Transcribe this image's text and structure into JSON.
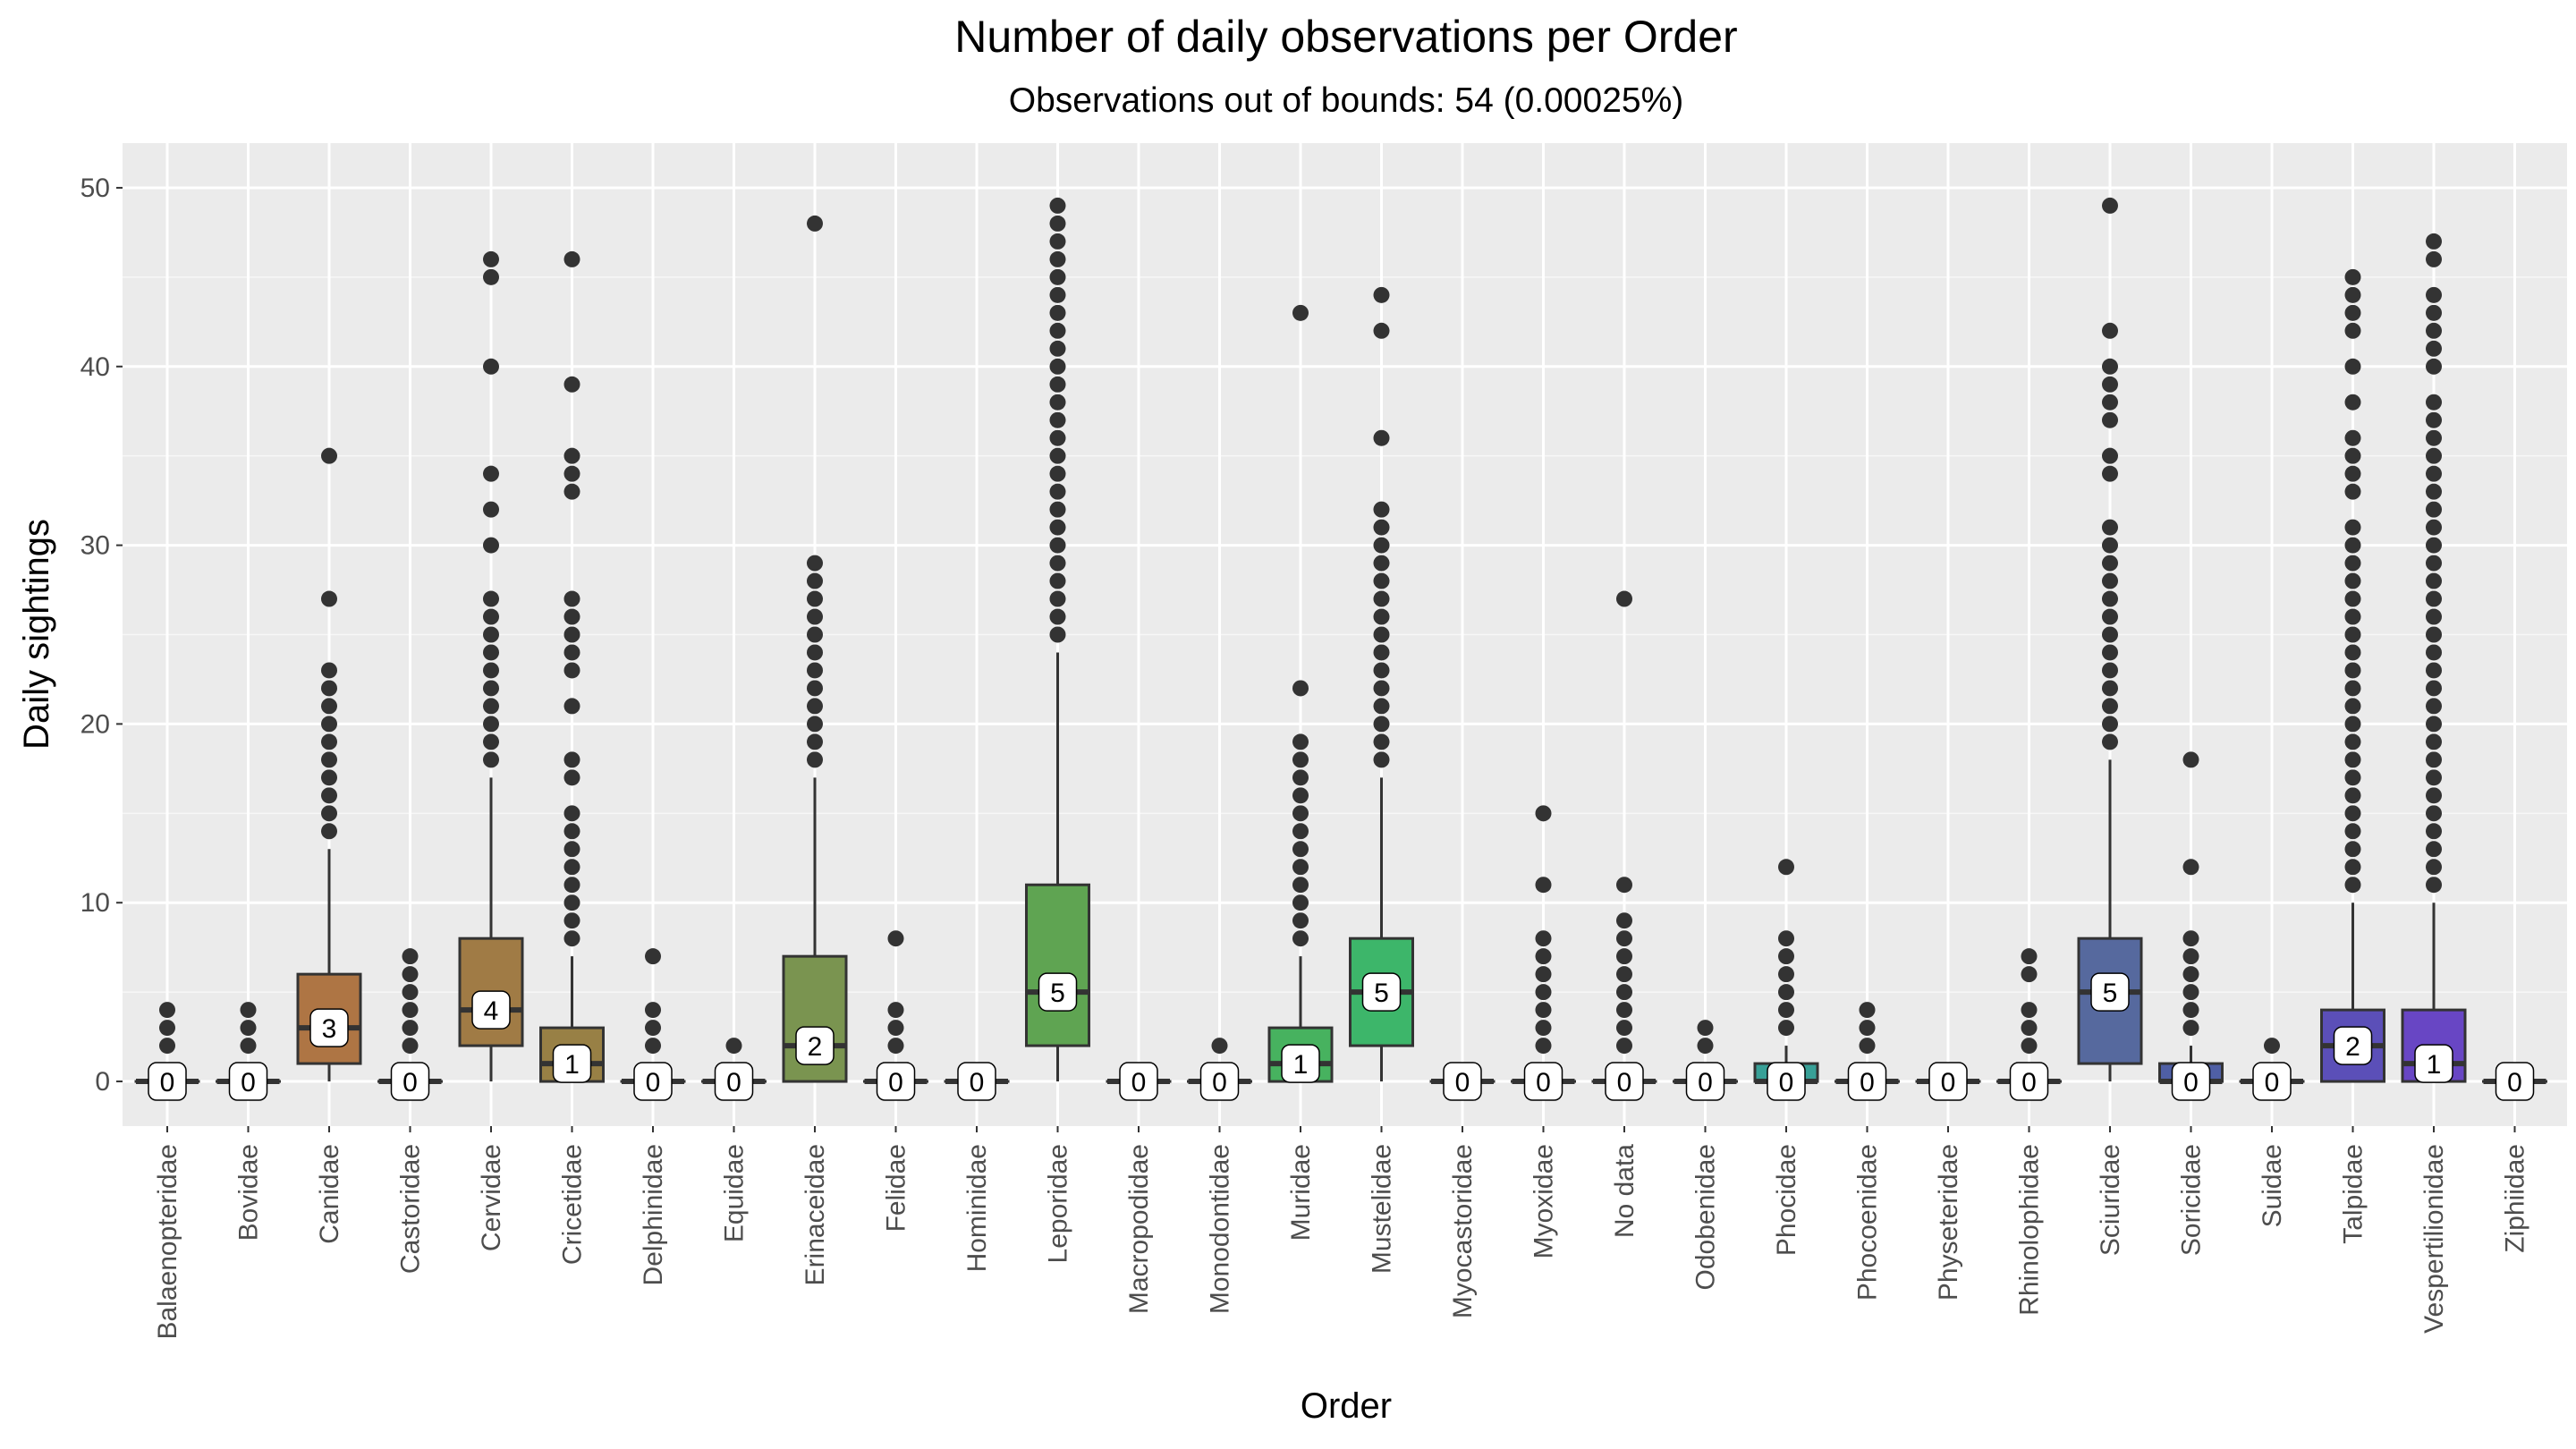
{
  "chart_data": {
    "type": "box",
    "title": "Number of daily observations per Order",
    "subtitle": "Observations out of bounds: 54 (0.00025%)",
    "xlabel": "Order",
    "ylabel": "Daily sightings",
    "ylim": [
      -2.5,
      52.5
    ],
    "yticks": [
      0,
      10,
      20,
      30,
      40,
      50
    ],
    "grid": true,
    "legend": "none",
    "categories": [
      {
        "name": "Balaenopteridae",
        "q1": 0,
        "median": 0,
        "q3": 0,
        "wlo": 0,
        "whi": 0,
        "outliers": [
          2,
          3,
          4
        ],
        "label": "0",
        "color": "#b7714a"
      },
      {
        "name": "Bovidae",
        "q1": 0,
        "median": 0,
        "q3": 0,
        "wlo": 0,
        "whi": 0,
        "outliers": [
          2,
          3,
          4
        ],
        "label": "0",
        "color": "#b3744a"
      },
      {
        "name": "Canidae",
        "q1": 1,
        "median": 3,
        "q3": 6,
        "wlo": 0,
        "whi": 13,
        "outliers": [
          14,
          15,
          16,
          17,
          18,
          19,
          20,
          21,
          22,
          23,
          27,
          35
        ],
        "label": "3",
        "color": "#ae7544"
      },
      {
        "name": "Castoridae",
        "q1": 0,
        "median": 0,
        "q3": 0,
        "wlo": 0,
        "whi": 0,
        "outliers": [
          2,
          3,
          4,
          5,
          6,
          7
        ],
        "label": "0",
        "color": "#a87a47"
      },
      {
        "name": "Cervidae",
        "q1": 2,
        "median": 4,
        "q3": 8,
        "wlo": 0,
        "whi": 17,
        "outliers": [
          18,
          19,
          20,
          21,
          22,
          23,
          24,
          25,
          26,
          27,
          30,
          32,
          34,
          40,
          45,
          46
        ],
        "label": "4",
        "color": "#a07b45"
      },
      {
        "name": "Cricetidae",
        "q1": 0,
        "median": 1,
        "q3": 3,
        "wlo": 0,
        "whi": 7,
        "outliers": [
          8,
          9,
          10,
          11,
          12,
          13,
          14,
          15,
          17,
          18,
          21,
          23,
          24,
          25,
          26,
          27,
          33,
          34,
          35,
          39,
          46
        ],
        "label": "1",
        "color": "#988045"
      },
      {
        "name": "Delphinidae",
        "q1": 0,
        "median": 0,
        "q3": 0,
        "wlo": 0,
        "whi": 0,
        "outliers": [
          2,
          3,
          4,
          7
        ],
        "label": "0",
        "color": "#908448"
      },
      {
        "name": "Equidae",
        "q1": 0,
        "median": 0,
        "q3": 0,
        "wlo": 0,
        "whi": 0,
        "outliers": [
          2
        ],
        "label": "0",
        "color": "#88884a"
      },
      {
        "name": "Erinaceidae",
        "q1": 0,
        "median": 2,
        "q3": 7,
        "wlo": 0,
        "whi": 17,
        "outliers": [
          18,
          19,
          20,
          21,
          22,
          23,
          24,
          25,
          26,
          27,
          28,
          29,
          48
        ],
        "label": "2",
        "color": "#7a9450"
      },
      {
        "name": "Felidae",
        "q1": 0,
        "median": 0,
        "q3": 0,
        "wlo": 0,
        "whi": 0,
        "outliers": [
          2,
          3,
          4,
          8
        ],
        "label": "0",
        "color": "#729952"
      },
      {
        "name": "Hominidae",
        "q1": 0,
        "median": 0,
        "q3": 0,
        "wlo": 0,
        "whi": 0,
        "outliers": [],
        "label": "0",
        "color": "#6a9c55"
      },
      {
        "name": "Leporidae",
        "q1": 2,
        "median": 5,
        "q3": 11,
        "wlo": 0,
        "whi": 24,
        "outliers": [
          25,
          26,
          27,
          28,
          29,
          30,
          31,
          32,
          33,
          34,
          35,
          36,
          37,
          38,
          39,
          40,
          41,
          42,
          43,
          44,
          45,
          46,
          47,
          48,
          49
        ],
        "label": "5",
        "color": "#5fa452"
      },
      {
        "name": "Macropodidae",
        "q1": 0,
        "median": 0,
        "q3": 0,
        "wlo": 0,
        "whi": 0,
        "outliers": [],
        "label": "0",
        "color": "#57a858"
      },
      {
        "name": "Monodontidae",
        "q1": 0,
        "median": 0,
        "q3": 0,
        "wlo": 0,
        "whi": 0,
        "outliers": [
          2
        ],
        "label": "0",
        "color": "#4fad5c"
      },
      {
        "name": "Muridae",
        "q1": 0,
        "median": 1,
        "q3": 3,
        "wlo": 0,
        "whi": 7,
        "outliers": [
          8,
          9,
          10,
          11,
          12,
          13,
          14,
          15,
          16,
          17,
          18,
          19,
          22,
          43
        ],
        "label": "1",
        "color": "#47b25f"
      },
      {
        "name": "Mustelidae",
        "q1": 2,
        "median": 5,
        "q3": 8,
        "wlo": 0,
        "whi": 17,
        "outliers": [
          18,
          19,
          20,
          21,
          22,
          23,
          24,
          25,
          26,
          27,
          28,
          29,
          30,
          31,
          32,
          36,
          42,
          44
        ],
        "label": "5",
        "color": "#3db66a"
      },
      {
        "name": "Myocastoridae",
        "q1": 0,
        "median": 0,
        "q3": 0,
        "wlo": 0,
        "whi": 0,
        "outliers": [],
        "label": "0",
        "color": "#3ab472"
      },
      {
        "name": "Myoxidae",
        "q1": 0,
        "median": 0,
        "q3": 0,
        "wlo": 0,
        "whi": 0,
        "outliers": [
          2,
          3,
          4,
          5,
          6,
          7,
          8,
          11,
          15
        ],
        "label": "0",
        "color": "#38b07a"
      },
      {
        "name": "No data",
        "q1": 0,
        "median": 0,
        "q3": 0,
        "wlo": 0,
        "whi": 0,
        "outliers": [
          2,
          3,
          4,
          5,
          6,
          7,
          8,
          9,
          11,
          27
        ],
        "label": "0",
        "color": "#37ab84"
      },
      {
        "name": "Odobenidae",
        "q1": 0,
        "median": 0,
        "q3": 0,
        "wlo": 0,
        "whi": 0,
        "outliers": [
          2,
          3
        ],
        "label": "0",
        "color": "#37a68e"
      },
      {
        "name": "Phocidae",
        "q1": 0,
        "median": 0,
        "q3": 1,
        "wlo": 0,
        "whi": 2,
        "outliers": [
          3,
          4,
          5,
          6,
          7,
          8,
          12
        ],
        "label": "0",
        "color": "#38a097"
      },
      {
        "name": "Phocoenidae",
        "q1": 0,
        "median": 0,
        "q3": 0,
        "wlo": 0,
        "whi": 0,
        "outliers": [
          2,
          3,
          4
        ],
        "label": "0",
        "color": "#3a98a0"
      },
      {
        "name": "Physeteridae",
        "q1": 0,
        "median": 0,
        "q3": 0,
        "wlo": 0,
        "whi": 0,
        "outliers": [],
        "label": "0",
        "color": "#3d8fa6"
      },
      {
        "name": "Rhinolophidae",
        "q1": 0,
        "median": 0,
        "q3": 0,
        "wlo": 0,
        "whi": 0,
        "outliers": [
          2,
          3,
          4,
          6,
          7
        ],
        "label": "0",
        "color": "#4585ad"
      },
      {
        "name": "Sciuridae",
        "q1": 1,
        "median": 5,
        "q3": 8,
        "wlo": 0,
        "whi": 18,
        "outliers": [
          19,
          20,
          21,
          22,
          23,
          24,
          25,
          26,
          27,
          28,
          29,
          30,
          31,
          34,
          35,
          37,
          38,
          39,
          40,
          42,
          49
        ],
        "label": "5",
        "color": "#56699e"
      },
      {
        "name": "Soricidae",
        "q1": 0,
        "median": 0,
        "q3": 1,
        "wlo": 0,
        "whi": 2,
        "outliers": [
          3,
          4,
          5,
          6,
          7,
          8,
          12,
          18
        ],
        "label": "0",
        "color": "#4f5fa5"
      },
      {
        "name": "Suidae",
        "q1": 0,
        "median": 0,
        "q3": 0,
        "wlo": 0,
        "whi": 0,
        "outliers": [
          2
        ],
        "label": "0",
        "color": "#5558ad"
      },
      {
        "name": "Talpidae",
        "q1": 0,
        "median": 2,
        "q3": 4,
        "wlo": 0,
        "whi": 10,
        "outliers": [
          11,
          12,
          13,
          14,
          15,
          16,
          17,
          18,
          19,
          20,
          21,
          22,
          23,
          24,
          25,
          26,
          27,
          28,
          29,
          30,
          31,
          33,
          34,
          35,
          36,
          38,
          40,
          42,
          43,
          44,
          45
        ],
        "label": "2",
        "color": "#5b4fb8"
      },
      {
        "name": "Vespertilionidae",
        "q1": 0,
        "median": 1,
        "q3": 4,
        "wlo": 0,
        "whi": 10,
        "outliers": [
          11,
          12,
          13,
          14,
          15,
          16,
          17,
          18,
          19,
          20,
          21,
          22,
          23,
          24,
          25,
          26,
          27,
          28,
          29,
          30,
          31,
          32,
          33,
          34,
          35,
          36,
          37,
          38,
          40,
          41,
          42,
          43,
          44,
          46,
          47
        ],
        "label": "1",
        "color": "#6846c4"
      },
      {
        "name": "Ziphiidae",
        "q1": 0,
        "median": 0,
        "q3": 0,
        "wlo": 0,
        "whi": 0,
        "outliers": [],
        "label": "0",
        "color": "#7038cf"
      }
    ]
  }
}
